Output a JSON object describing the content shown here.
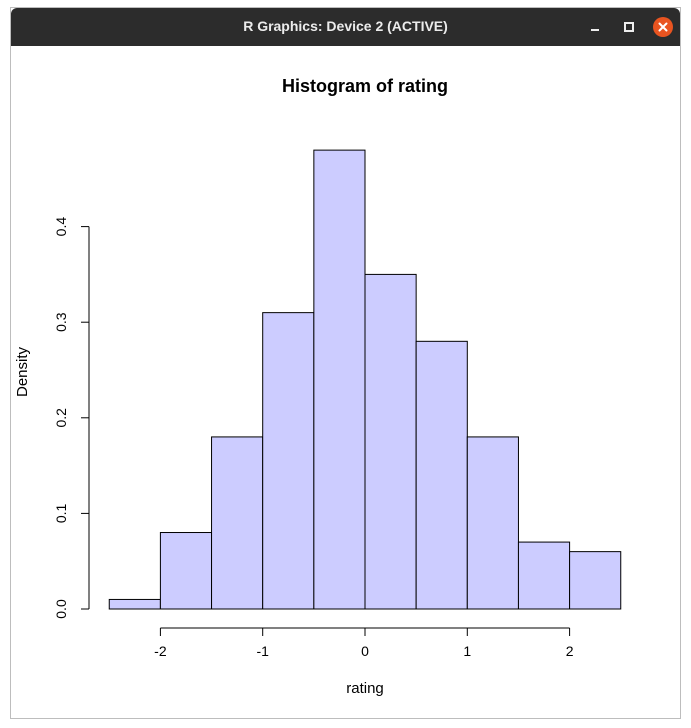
{
  "window": {
    "title": "R Graphics: Device 2 (ACTIVE)"
  },
  "icons": {
    "minimize": "minimize-icon",
    "maximize": "maximize-icon",
    "close": "close-icon"
  },
  "colors": {
    "bar_fill": "#ccccff",
    "bar_stroke": "#000000",
    "close_button": "#e95420",
    "titlebar": "#2c2c2c"
  },
  "chart_data": {
    "type": "bar",
    "title": "Histogram of rating",
    "xlabel": "rating",
    "ylabel": "Density",
    "bin_edges": [
      -2.5,
      -2,
      -1.5,
      -1,
      -0.5,
      0,
      0.5,
      1,
      1.5,
      2,
      2.5
    ],
    "values": [
      0.01,
      0.08,
      0.18,
      0.31,
      0.48,
      0.35,
      0.28,
      0.18,
      0.07,
      0.06
    ],
    "xticks": [
      -2,
      -1,
      0,
      1,
      2
    ],
    "xtick_labels": [
      "-2",
      "-1",
      "0",
      "1",
      "2"
    ],
    "yticks": [
      0,
      0.1,
      0.2,
      0.3,
      0.4
    ],
    "ytick_labels": [
      "0.0",
      "0.1",
      "0.2",
      "0.3",
      "0.4"
    ],
    "xlim": [
      -2.5,
      2.5
    ],
    "ylim": [
      0,
      0.48
    ],
    "grid": false,
    "legend": "none"
  }
}
